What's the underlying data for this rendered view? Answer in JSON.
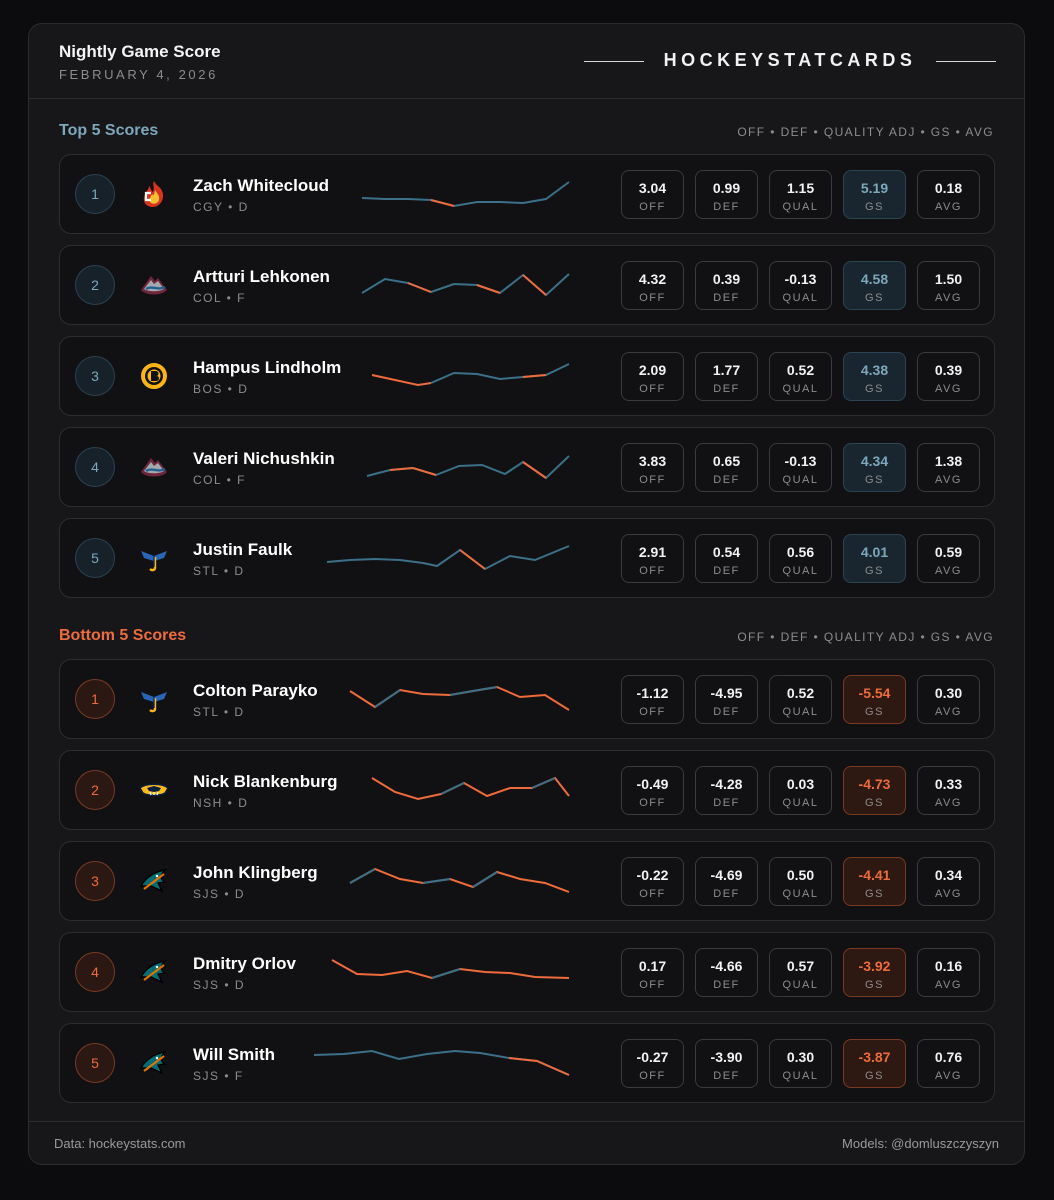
{
  "header": {
    "title": "Nightly Game Score",
    "date": "FEBRUARY 4, 2026",
    "brand": "HOCKEYSTATCARDS"
  },
  "top": {
    "title": "Top 5 Scores",
    "legend": "OFF • DEF • QUALITY ADJ • GS • AVG",
    "players": [
      {
        "rank": "1",
        "name": "Zach Whitecloud",
        "meta": "CGY • D",
        "off": "3.04",
        "def": "0.99",
        "qual": "1.15",
        "gs": "5.19",
        "avg": "0.18"
      },
      {
        "rank": "2",
        "name": "Artturi Lehkonen",
        "meta": "COL • F",
        "off": "4.32",
        "def": "0.39",
        "qual": "-0.13",
        "gs": "4.58",
        "avg": "1.50"
      },
      {
        "rank": "3",
        "name": "Hampus Lindholm",
        "meta": "BOS • D",
        "off": "2.09",
        "def": "1.77",
        "qual": "0.52",
        "gs": "4.38",
        "avg": "0.39"
      },
      {
        "rank": "4",
        "name": "Valeri Nichushkin",
        "meta": "COL • F",
        "off": "3.83",
        "def": "0.65",
        "qual": "-0.13",
        "gs": "4.34",
        "avg": "1.38"
      },
      {
        "rank": "5",
        "name": "Justin Faulk",
        "meta": "STL • D",
        "off": "2.91",
        "def": "0.54",
        "qual": "0.56",
        "gs": "4.01",
        "avg": "0.59"
      }
    ]
  },
  "bottom": {
    "title": "Bottom 5 Scores",
    "legend": "OFF • DEF • QUALITY ADJ • GS • AVG",
    "players": [
      {
        "rank": "1",
        "name": "Colton Parayko",
        "meta": "STL • D",
        "off": "-1.12",
        "def": "-4.95",
        "qual": "0.52",
        "gs": "-5.54",
        "avg": "0.30"
      },
      {
        "rank": "2",
        "name": "Nick Blankenburg",
        "meta": "NSH • D",
        "off": "-0.49",
        "def": "-4.28",
        "qual": "0.03",
        "gs": "-4.73",
        "avg": "0.33"
      },
      {
        "rank": "3",
        "name": "John Klingberg",
        "meta": "SJS • D",
        "off": "-0.22",
        "def": "-4.69",
        "qual": "0.50",
        "gs": "-4.41",
        "avg": "0.34"
      },
      {
        "rank": "4",
        "name": "Dmitry Orlov",
        "meta": "SJS • D",
        "off": "0.17",
        "def": "-4.66",
        "qual": "0.57",
        "gs": "-3.92",
        "avg": "0.16"
      },
      {
        "rank": "5",
        "name": "Will Smith",
        "meta": "SJS • F",
        "off": "-0.27",
        "def": "-3.90",
        "qual": "0.30",
        "gs": "-3.87",
        "avg": "0.76"
      }
    ]
  },
  "stat_labels": {
    "off": "OFF",
    "def": "DEF",
    "qual": "QUAL",
    "gs": "GS",
    "avg": "AVG"
  },
  "footer": {
    "source": "Data: hockeystats.com",
    "models": "Models: @domluszczyszyn"
  },
  "colors": {
    "accent_top": "#7da7bb",
    "accent_bottom": "#ee6b3b",
    "spark_blue": "#3b7089",
    "spark_orange": "#ee6b3b"
  }
}
